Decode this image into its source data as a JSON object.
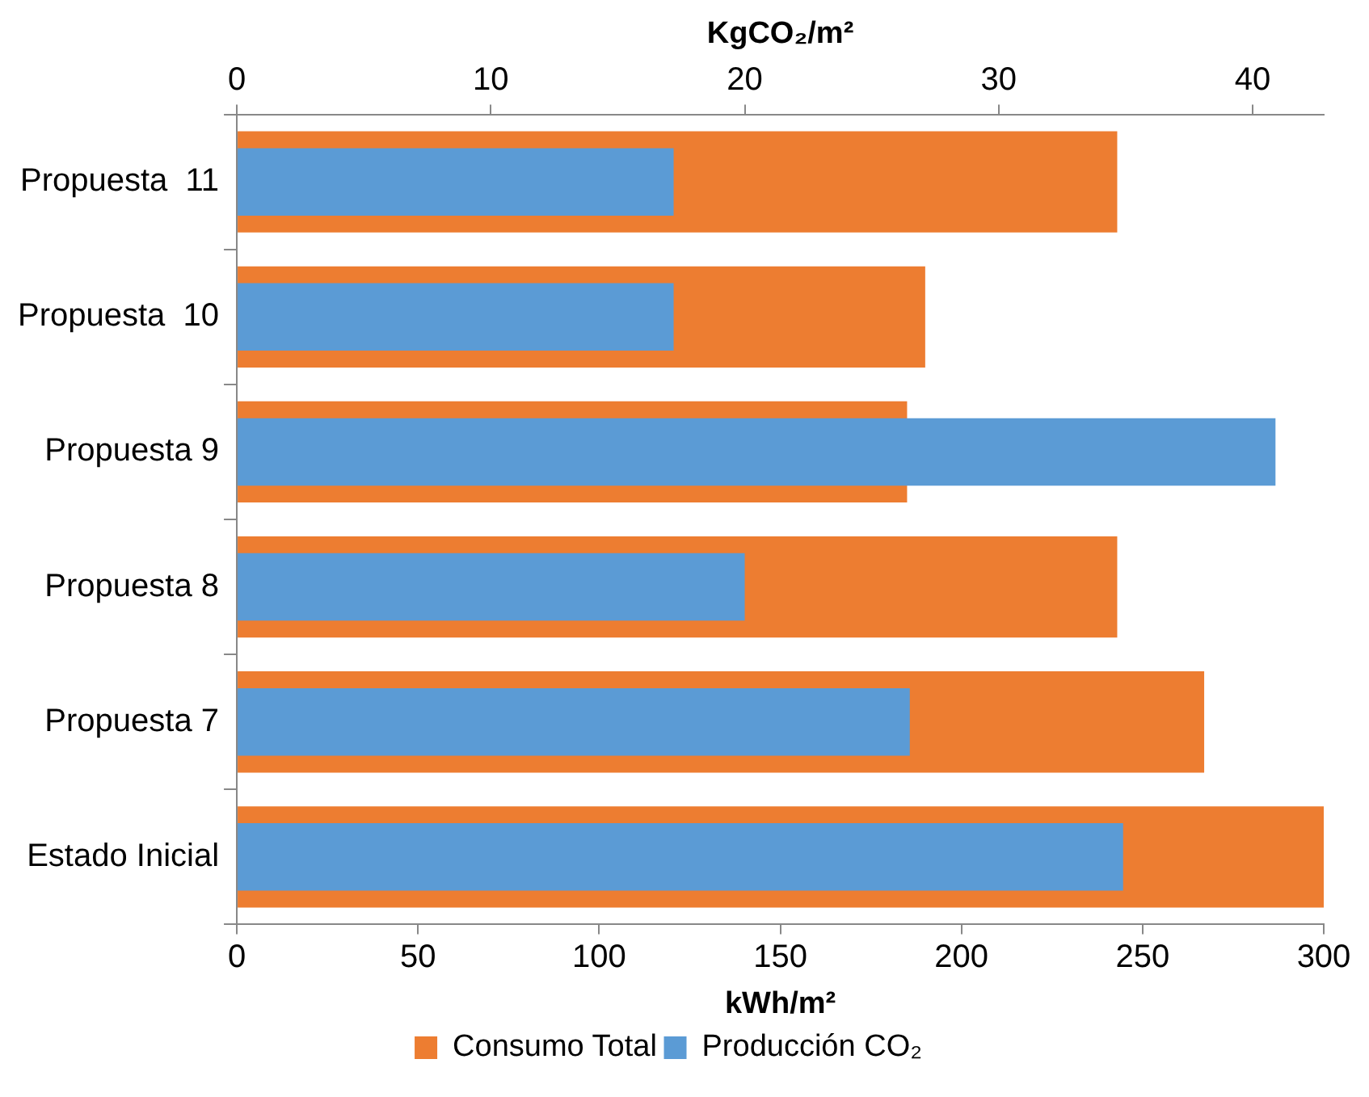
{
  "chart_data": {
    "type": "bar",
    "orientation": "horizontal",
    "categories": [
      "Propuesta  11",
      "Propuesta  10",
      "Propuesta 9",
      "Propuesta 8",
      "Propuesta 7",
      "Estado Inicial"
    ],
    "series": [
      {
        "name": "Consumo Total",
        "color": "#ed7d31",
        "values": [
          243,
          190,
          185,
          243,
          267,
          300
        ]
      },
      {
        "name": "Producción CO₂",
        "color": "#5b9bd5",
        "axis": "x2",
        "values": [
          17.2,
          17.2,
          40.9,
          20.0,
          26.5,
          34.9
        ]
      }
    ],
    "xlabel": "kWh/m²",
    "xlim": [
      0,
      300
    ],
    "xticks": [
      0,
      50,
      100,
      150,
      200,
      250,
      300
    ],
    "x2label": "KgCO₂/m²",
    "x2lim": [
      0,
      42.8
    ],
    "x2ticks": [
      0,
      10,
      20,
      30,
      40
    ],
    "grid": false,
    "legend": "bottom"
  }
}
